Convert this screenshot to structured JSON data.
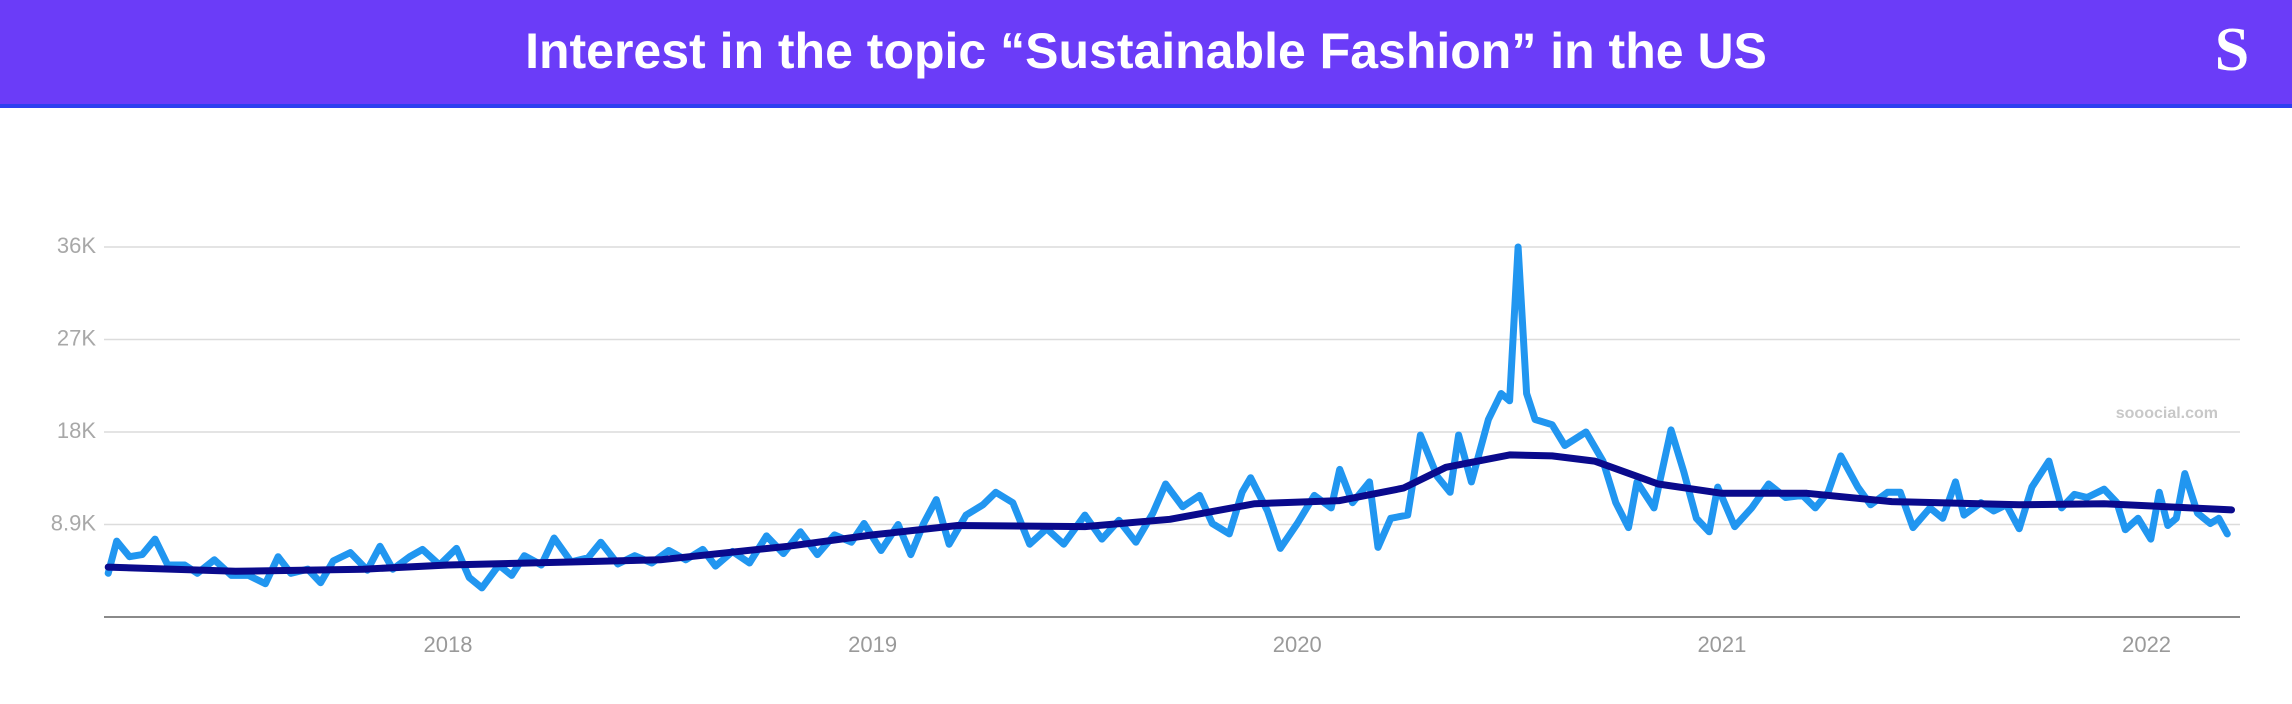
{
  "header": {
    "title": "Interest in the topic “Sustainable Fashion” in the US",
    "logo": "S"
  },
  "chart_data": {
    "type": "line",
    "watermark": "sooocial.com",
    "xlim": [
      2017.19,
      2022.22
    ],
    "xticks": [
      2018,
      2019,
      2020,
      2021,
      2022
    ],
    "ylim": [
      0,
      35600
    ],
    "yticks": [
      {
        "value": 8900,
        "label": "8.9K"
      },
      {
        "value": 17800,
        "label": "18K"
      },
      {
        "value": 26700,
        "label": "27K"
      },
      {
        "value": 35600,
        "label": "36K"
      }
    ],
    "grid": true,
    "series": [
      {
        "color": "#2196f0",
        "x": [
          2017.2,
          2017.22,
          2017.25,
          2017.28,
          2017.31,
          2017.34,
          2017.38,
          2017.41,
          2017.45,
          2017.49,
          2017.53,
          2017.57,
          2017.6,
          2017.63,
          2017.67,
          2017.7,
          2017.73,
          2017.77,
          2017.81,
          2017.84,
          2017.87,
          2017.91,
          2017.94,
          2017.98,
          2018.02,
          2018.05,
          2018.08,
          2018.12,
          2018.15,
          2018.18,
          2018.22,
          2018.25,
          2018.29,
          2018.33,
          2018.36,
          2018.4,
          2018.44,
          2018.48,
          2018.52,
          2018.56,
          2018.6,
          2018.63,
          2018.67,
          2018.71,
          2018.75,
          2018.79,
          2018.83,
          2018.87,
          2018.91,
          2018.95,
          2018.98,
          2019.02,
          2019.06,
          2019.09,
          2019.12,
          2019.15,
          2019.18,
          2019.22,
          2019.26,
          2019.29,
          2019.33,
          2019.37,
          2019.41,
          2019.45,
          2019.5,
          2019.54,
          2019.58,
          2019.62,
          2019.66,
          2019.69,
          2019.73,
          2019.77,
          2019.8,
          2019.84,
          2019.87,
          2019.89,
          2019.93,
          2019.96,
          2020.0,
          2020.04,
          2020.08,
          2020.1,
          2020.13,
          2020.17,
          2020.19,
          2020.22,
          2020.26,
          2020.29,
          2020.33,
          2020.36,
          2020.38,
          2020.41,
          2020.45,
          2020.48,
          2020.5,
          2020.52,
          2020.54,
          2020.56,
          2020.6,
          2020.63,
          2020.68,
          2020.72,
          2020.75,
          2020.78,
          2020.8,
          2020.84,
          2020.88,
          2020.91,
          2020.94,
          2020.97,
          2020.99,
          2021.03,
          2021.07,
          2021.11,
          2021.15,
          2021.19,
          2021.22,
          2021.25,
          2021.28,
          2021.32,
          2021.35,
          2021.39,
          2021.42,
          2021.45,
          2021.49,
          2021.52,
          2021.55,
          2021.57,
          2021.61,
          2021.64,
          2021.67,
          2021.7,
          2021.73,
          2021.77,
          2021.8,
          2021.83,
          2021.86,
          2021.9,
          2021.93,
          2021.95,
          2021.98,
          2022.01,
          2022.03,
          2022.05,
          2022.07,
          2022.09,
          2022.12,
          2022.15,
          2022.17,
          2022.19
        ],
        "values": [
          4200,
          7300,
          5800,
          6000,
          7500,
          5000,
          5000,
          4200,
          5500,
          4000,
          4000,
          3200,
          5800,
          4200,
          4600,
          3300,
          5400,
          6200,
          4500,
          6800,
          4600,
          5800,
          6500,
          5000,
          6600,
          3800,
          2800,
          5000,
          4000,
          5900,
          5000,
          7600,
          5300,
          5700,
          7200,
          5100,
          5900,
          5200,
          6400,
          5500,
          6500,
          4900,
          6300,
          5200,
          7800,
          6100,
          8200,
          6000,
          7900,
          7200,
          9000,
          6400,
          8900,
          6000,
          9000,
          11300,
          7000,
          9800,
          10800,
          12000,
          11000,
          7000,
          8500,
          7000,
          9800,
          7500,
          9300,
          7200,
          10000,
          12800,
          10600,
          11700,
          9000,
          8000,
          12000,
          13400,
          10200,
          6600,
          9000,
          11700,
          10500,
          14200,
          11000,
          13000,
          6700,
          9500,
          9800,
          17500,
          13500,
          12000,
          17500,
          13000,
          19000,
          21500,
          20800,
          35600,
          21500,
          19000,
          18500,
          16500,
          17800,
          15000,
          11000,
          8600,
          13000,
          10500,
          18000,
          14000,
          9500,
          8200,
          12500,
          8700,
          10500,
          12800,
          11500,
          11700,
          10500,
          12000,
          15500,
          12500,
          10800,
          12000,
          12000,
          8600,
          10500,
          9500,
          13000,
          9800,
          11000,
          10200,
          10800,
          8500,
          12500,
          15000,
          10500,
          11800,
          11500,
          12300,
          11000,
          8400,
          9500,
          7500,
          12000,
          8800,
          9500,
          13800,
          10000,
          9000,
          9500,
          8000
        ]
      },
      {
        "color": "#0a0a8c",
        "x": [
          2017.2,
          2017.5,
          2017.8,
          2018.0,
          2018.3,
          2018.5,
          2018.8,
          2019.0,
          2019.2,
          2019.5,
          2019.7,
          2019.9,
          2020.1,
          2020.25,
          2020.35,
          2020.5,
          2020.6,
          2020.7,
          2020.85,
          2021.0,
          2021.2,
          2021.4,
          2021.7,
          2021.9,
          2022.2
        ],
        "values": [
          4800,
          4400,
          4600,
          5000,
          5300,
          5500,
          6800,
          7900,
          8800,
          8700,
          9400,
          10900,
          11200,
          12400,
          14400,
          15600,
          15500,
          15000,
          12800,
          11900,
          11900,
          11100,
          10800,
          10900,
          10300
        ]
      }
    ]
  }
}
